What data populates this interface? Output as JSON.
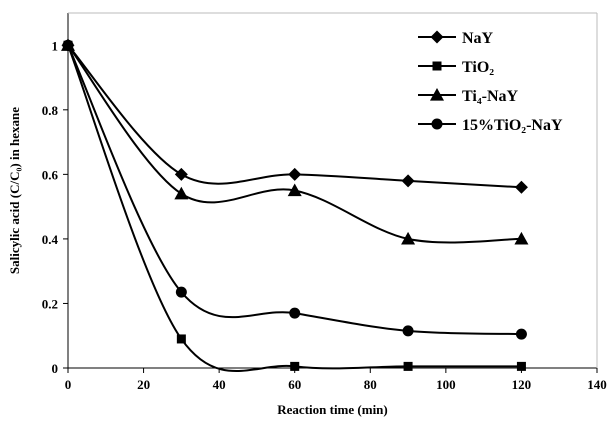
{
  "chart_data": {
    "type": "line",
    "title": "",
    "xlabel": "Reaction time (min)",
    "ylabel": "Salicylic acid (C/C₀) in hexane",
    "xlim": [
      0,
      140
    ],
    "ylim": [
      0,
      1.1
    ],
    "xticks": [
      0,
      20,
      40,
      60,
      80,
      100,
      120,
      140
    ],
    "yticks": [
      0,
      0.2,
      0.4,
      0.6,
      0.8,
      1
    ],
    "xtick_labels": [
      "0",
      "20",
      "40",
      "60",
      "80",
      "100",
      "120",
      "140"
    ],
    "ytick_labels": [
      "0",
      "0.2",
      "0.4",
      "0.6",
      "0.8",
      "1"
    ],
    "grid": false,
    "legend_position": "top-right",
    "smoothed_lines": true,
    "series": [
      {
        "name": "NaY",
        "marker": "diamond",
        "x": [
          0,
          30,
          60,
          90,
          120
        ],
        "y": [
          1.0,
          0.6,
          0.6,
          0.58,
          0.56
        ]
      },
      {
        "name": "TiO₂",
        "marker": "square",
        "x": [
          0,
          30,
          60,
          90,
          120
        ],
        "y": [
          1.0,
          0.09,
          0.005,
          0.005,
          0.005
        ]
      },
      {
        "name": "Ti₄-NaY",
        "marker": "triangle",
        "x": [
          0,
          30,
          60,
          90,
          120
        ],
        "y": [
          1.0,
          0.54,
          0.55,
          0.4,
          0.4
        ]
      },
      {
        "name": "15%TiO₂-NaY",
        "marker": "circle",
        "x": [
          0,
          30,
          60,
          90,
          120
        ],
        "y": [
          1.0,
          0.235,
          0.17,
          0.115,
          0.105
        ]
      }
    ],
    "colors": {
      "line": "#000000",
      "background": "#ffffff"
    }
  }
}
